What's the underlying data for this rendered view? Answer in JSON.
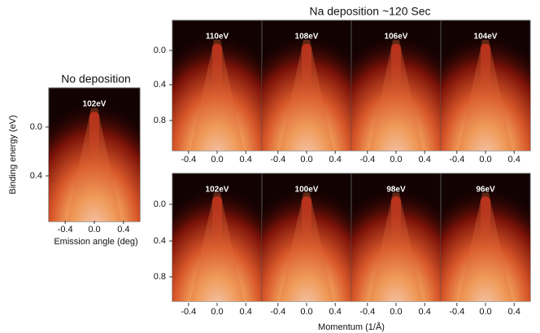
{
  "left": {
    "title": "No deposition",
    "panel": "102eV",
    "yticks": [
      "0.0",
      "0.4"
    ],
    "xticks": [
      "-0.4",
      "0.0",
      "0.4"
    ],
    "xlabel": "Emission angle (deg)",
    "ylabel": "Binding energy (eV)"
  },
  "right": {
    "title": "Na deposition ~120 Sec",
    "rows": [
      {
        "panels": [
          "110eV",
          "108eV",
          "106eV",
          "104eV"
        ],
        "yticks": [
          "0.0",
          "0.4",
          "0.8"
        ]
      },
      {
        "panels": [
          "102eV",
          "100eV",
          "98eV",
          "96eV"
        ],
        "yticks": [
          "0.0",
          "0.4",
          "0.8"
        ]
      }
    ],
    "xticks": [
      "-0.4",
      "0.0",
      "0.4"
    ],
    "xlabel": "Momentum (1/Å)"
  }
}
